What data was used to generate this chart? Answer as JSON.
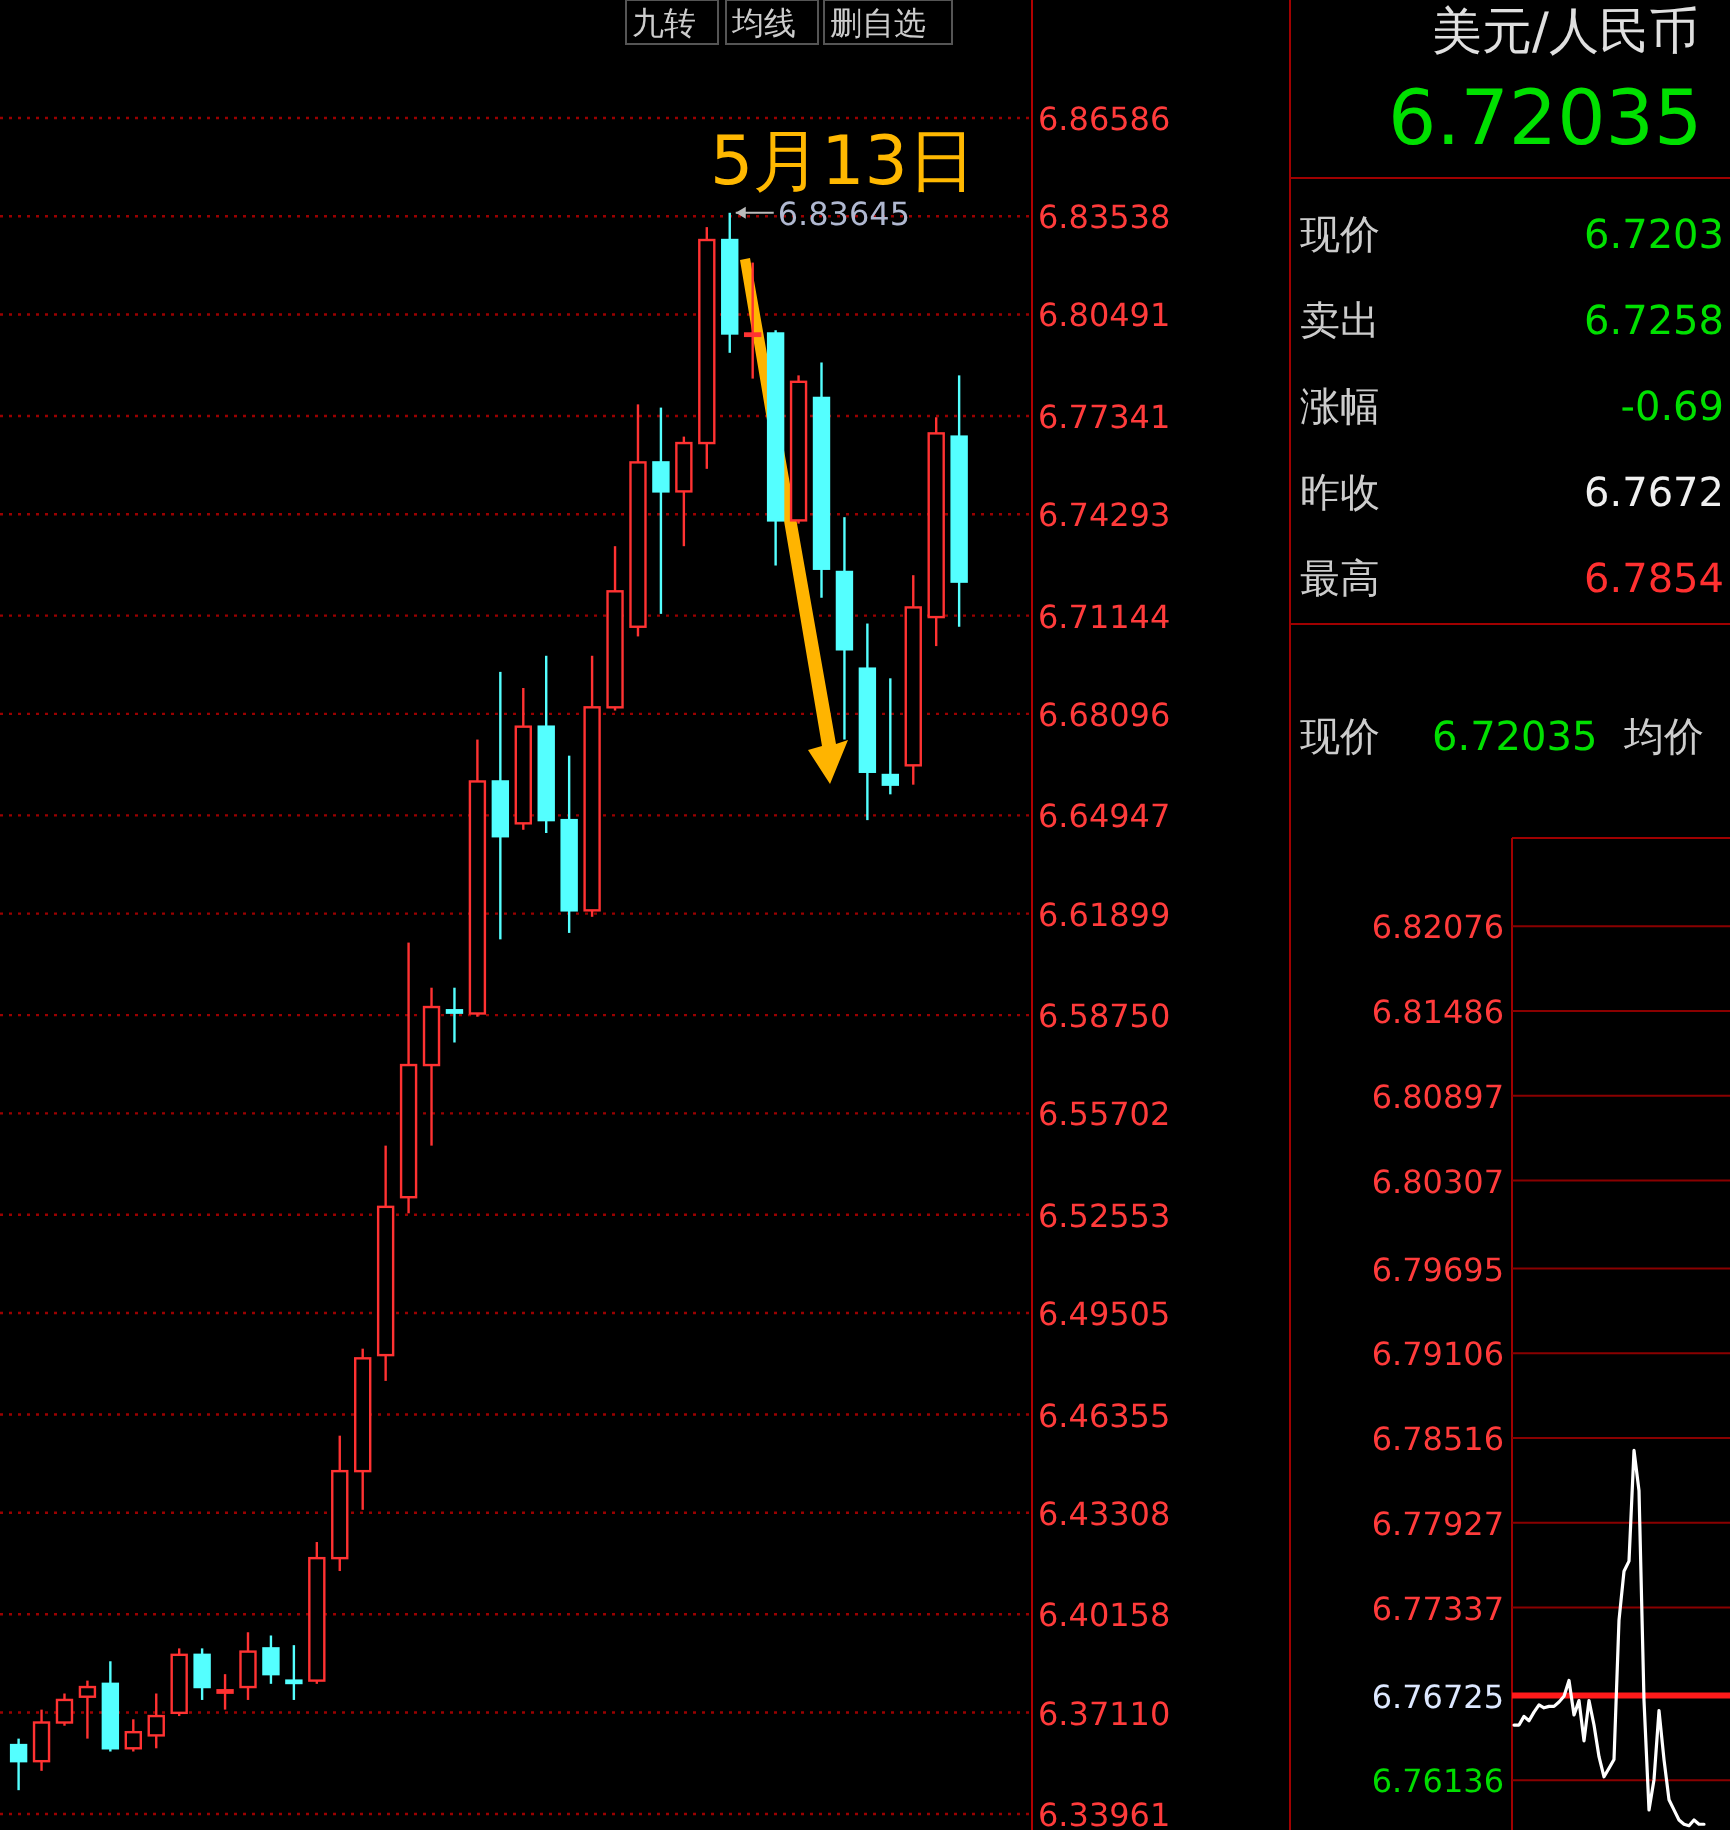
{
  "chart_data": [
    {
      "type": "candlestick",
      "categories": [
        null,
        null,
        null,
        null,
        null,
        null,
        null,
        null,
        null,
        null,
        null,
        null,
        null,
        null,
        null,
        null,
        null,
        null,
        null,
        null,
        null,
        null,
        null,
        null,
        null,
        null,
        null,
        null,
        null,
        null,
        null,
        null,
        null,
        null,
        null,
        null,
        null,
        null,
        null,
        null,
        null,
        null
      ],
      "ohlc": [
        [
          6.361,
          6.363,
          6.347,
          6.356
        ],
        [
          6.356,
          6.372,
          6.353,
          6.368
        ],
        [
          6.368,
          6.377,
          6.367,
          6.375
        ],
        [
          6.376,
          6.381,
          6.363,
          6.379
        ],
        [
          6.38,
          6.387,
          6.359,
          6.36
        ],
        [
          6.36,
          6.369,
          6.359,
          6.365
        ],
        [
          6.364,
          6.377,
          6.36,
          6.37
        ],
        [
          6.371,
          6.391,
          6.37,
          6.389
        ],
        [
          6.389,
          6.391,
          6.375,
          6.379
        ],
        [
          6.378,
          6.383,
          6.372,
          6.378
        ],
        [
          6.379,
          6.396,
          6.375,
          6.39
        ],
        [
          6.391,
          6.395,
          6.38,
          6.383
        ],
        [
          6.381,
          6.392,
          6.375,
          6.381
        ],
        [
          6.381,
          6.424,
          6.38,
          6.419
        ],
        [
          6.419,
          6.457,
          6.415,
          6.446
        ],
        [
          6.446,
          6.484,
          6.434,
          6.481
        ],
        [
          6.482,
          6.547,
          6.474,
          6.528
        ],
        [
          6.531,
          6.61,
          6.526,
          6.572
        ],
        [
          6.572,
          6.596,
          6.547,
          6.59
        ],
        [
          6.589,
          6.596,
          6.579,
          6.589
        ],
        [
          6.588,
          6.673,
          6.587,
          6.66
        ],
        [
          6.66,
          6.694,
          6.611,
          6.643
        ],
        [
          6.647,
          6.689,
          6.645,
          6.677
        ],
        [
          6.677,
          6.699,
          6.644,
          6.648
        ],
        [
          6.648,
          6.668,
          6.613,
          6.62
        ],
        [
          6.62,
          6.699,
          6.618,
          6.683
        ],
        [
          6.683,
          6.733,
          6.682,
          6.719
        ],
        [
          6.708,
          6.777,
          6.705,
          6.759
        ],
        [
          6.759,
          6.776,
          6.712,
          6.75
        ],
        [
          6.75,
          6.767,
          6.733,
          6.765
        ],
        [
          6.765,
          6.832,
          6.757,
          6.828
        ],
        [
          6.828,
          6.83645,
          6.793,
          6.799
        ],
        [
          6.799,
          6.821,
          6.785,
          6.799
        ],
        [
          6.799,
          6.8,
          6.727,
          6.741
        ],
        [
          6.741,
          6.786,
          6.74,
          6.784
        ],
        [
          6.779,
          6.79,
          6.717,
          6.726
        ],
        [
          6.725,
          6.742,
          6.673,
          6.701
        ],
        [
          6.695,
          6.709,
          6.648,
          6.663
        ],
        [
          6.662,
          6.692,
          6.656,
          6.659
        ],
        [
          6.665,
          6.724,
          6.659,
          6.714
        ],
        [
          6.711,
          6.773,
          6.702,
          6.768
        ],
        [
          6.767,
          6.786,
          6.708,
          6.722
        ]
      ],
      "colors": [
        "#54ffff",
        "#ff3232",
        "#ff3232",
        "#ff3232",
        "#54ffff",
        "#ff3232",
        "#ff3232",
        "#ff3232",
        "#54ffff",
        "#ff3232",
        "#ff3232",
        "#54ffff",
        "#54ffff",
        "#ff3232",
        "#ff3232",
        "#ff3232",
        "#ff3232",
        "#ff3232",
        "#ff3232",
        "#54ffff",
        "#ff3232",
        "#54ffff",
        "#ff3232",
        "#54ffff",
        "#54ffff",
        "#ff3232",
        "#ff3232",
        "#ff3232",
        "#54ffff",
        "#ff3232",
        "#ff3232",
        "#54ffff",
        "#ff3232",
        "#54ffff",
        "#ff3232",
        "#54ffff",
        "#54ffff",
        "#54ffff",
        "#54ffff",
        "#ff3232",
        "#ff3232",
        "#54ffff"
      ],
      "ylim": [
        6.33961,
        6.86586
      ],
      "yticks": [
        6.86586,
        6.83538,
        6.80491,
        6.77341,
        6.74293,
        6.71144,
        6.68096,
        6.64947,
        6.61899,
        {
          "value": 6.5875,
          "label": "6.58750"
        },
        6.55702,
        6.52553,
        6.49505,
        6.46355,
        6.43308,
        6.40158,
        {
          "value": 6.3711,
          "label": "6.37110"
        },
        6.33961
      ],
      "grid": "y",
      "tick_labels": "y",
      "annotations": [
        "九转",
        "均线",
        "删自选",
        "5月13日",
        "6.83645"
      ]
    },
    {
      "type": "other",
      "title": "美元/人民币",
      "subtitle": "6.72035",
      "annotations": [
        "现价",
        "6.7203",
        "卖出",
        "6.7258",
        "涨幅",
        "-0.69",
        "昨收",
        "6.7672",
        "最高",
        "6.7854"
      ]
    },
    {
      "type": "line",
      "title": "现价",
      "subtitle": "6.72035",
      "annotations": [
        "均价"
      ],
      "categories": [
        null,
        null,
        null,
        null,
        null,
        null,
        null,
        null,
        null,
        null,
        null,
        null,
        null,
        null,
        null,
        null,
        null,
        null,
        null,
        null,
        null,
        null,
        null,
        null,
        null,
        null,
        null,
        null,
        null,
        null,
        null,
        null,
        null,
        null,
        null,
        null,
        null,
        null,
        null
      ],
      "series": [
        {
          "color": "#ffffff",
          "values": [
            6.7652,
            6.7652,
            6.7658,
            6.7655,
            6.7661,
            6.7666,
            6.7664,
            6.7665,
            6.7665,
            6.7668,
            6.7672,
            6.7683,
            6.7659,
            6.7669,
            6.7641,
            6.7669,
            6.7652,
            6.763,
            6.7616,
            6.7622,
            6.7628,
            6.7725,
            6.7759,
            6.7766,
            6.7843,
            6.7815,
            6.7669,
            6.7593,
            6.7614,
            6.7662,
            6.7628,
            6.76,
            6.7593,
            6.7586,
            6.7583,
            6.7582,
            6.7586,
            6.7583,
            6.7583
          ]
        }
      ],
      "ylim": [
        6.7579,
        6.8269
      ],
      "yticks": [
        6.82076,
        6.81486,
        6.80897,
        6.80307,
        6.79695,
        6.79106,
        6.78516,
        6.77927,
        6.77337,
        6.76725,
        6.76136
      ],
      "grid": "y",
      "tick_labels": "y",
      "ref_lines": [
        {
          "axis": "y",
          "value": 6.76725,
          "color": "#ff1a1a"
        }
      ]
    }
  ]
}
